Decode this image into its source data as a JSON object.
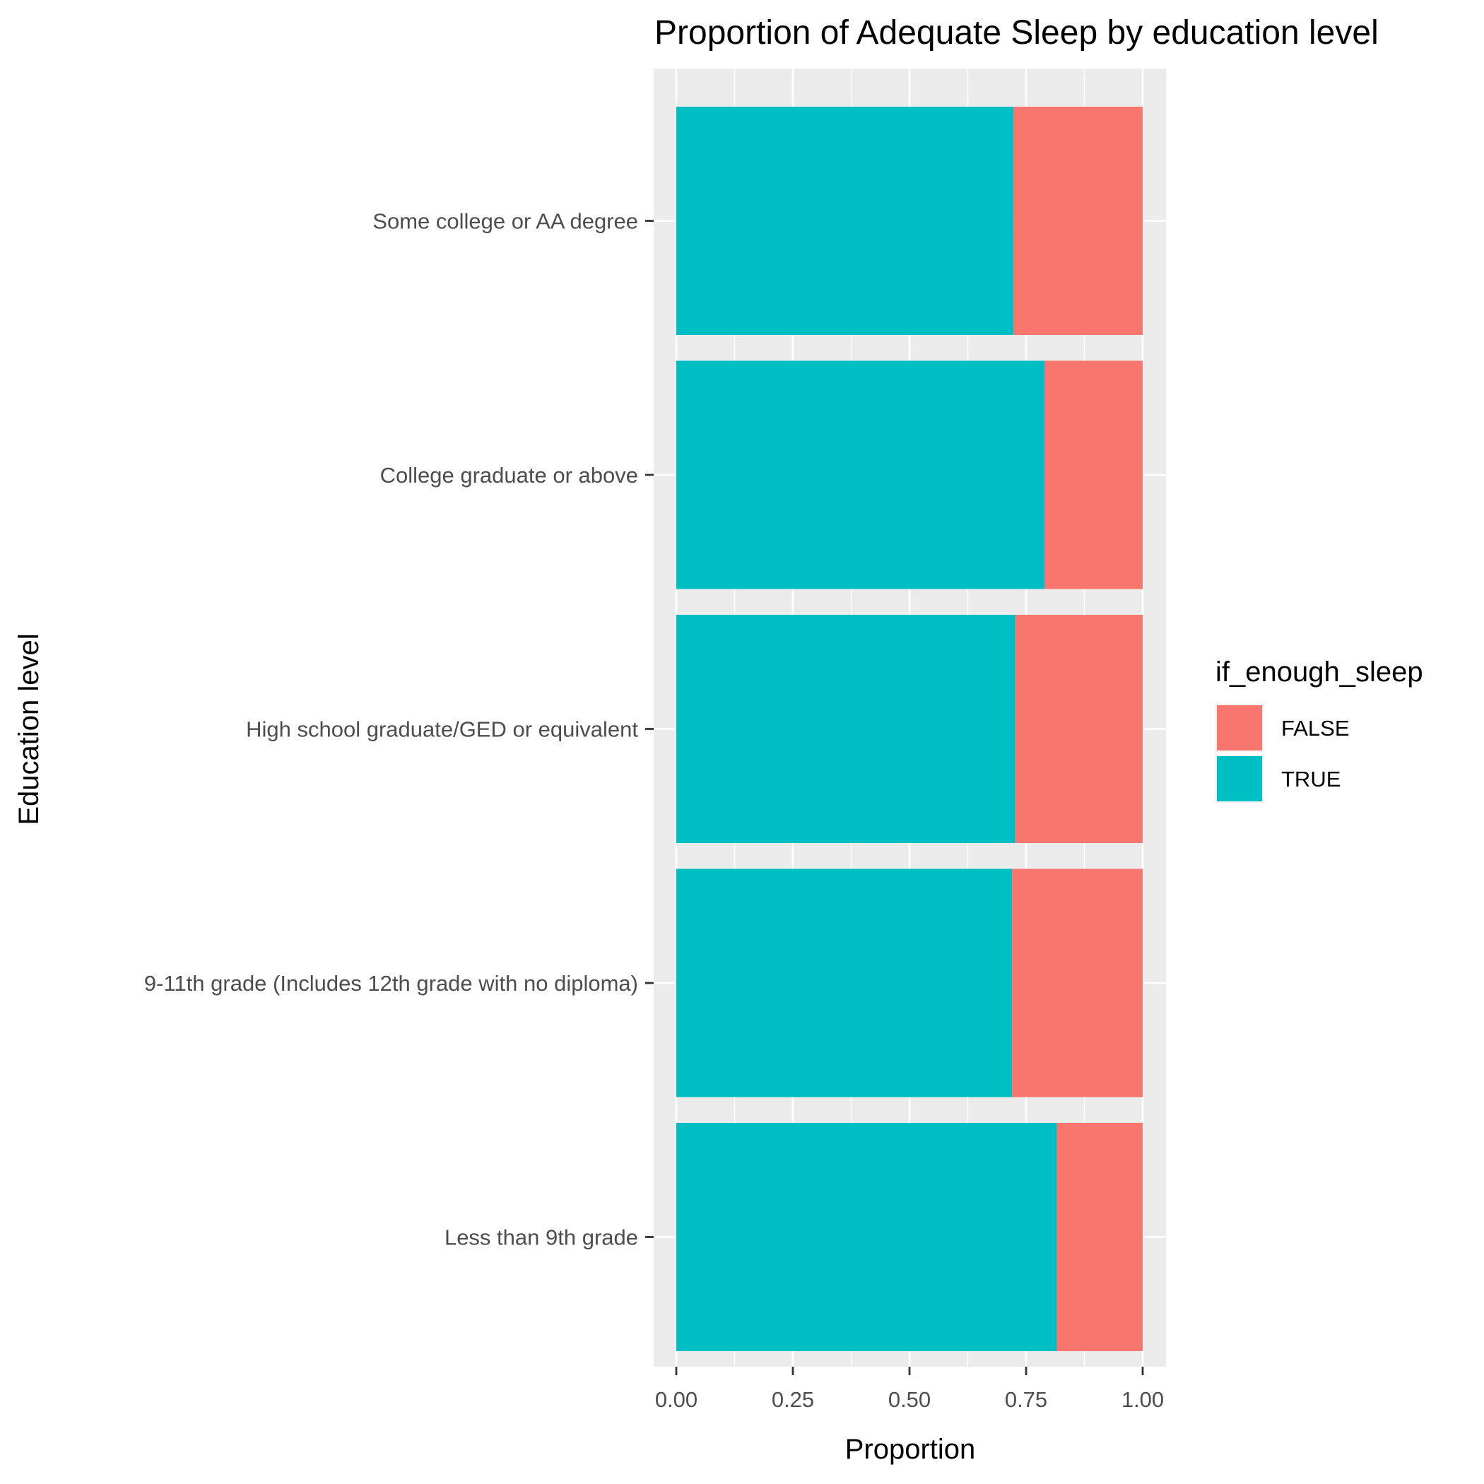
{
  "chart_data": {
    "type": "bar",
    "orientation": "horizontal",
    "stacked": true,
    "title": "Proportion of Adequate Sleep by education level",
    "xlabel": "Proportion",
    "ylabel": "Education level",
    "xlim": [
      0,
      1
    ],
    "x_ticks": [
      "0.00",
      "0.25",
      "0.50",
      "0.75",
      "1.00"
    ],
    "grid": true,
    "categories": [
      "Some college or AA degree",
      "College graduate or above",
      "High school graduate/GED or equivalent",
      "9-11th grade (Includes 12th grade with no diploma)",
      "Less than 9th grade"
    ],
    "series": [
      {
        "name": "TRUE",
        "color": "#00BFC4",
        "values": [
          0.723,
          0.79,
          0.727,
          0.72,
          0.816
        ]
      },
      {
        "name": "FALSE",
        "color": "#F8766D",
        "values": [
          0.277,
          0.21,
          0.273,
          0.28,
          0.184
        ]
      }
    ],
    "legend": {
      "title": "if_enough_sleep",
      "position": "right",
      "items": [
        {
          "label": "FALSE",
          "color": "#F8766D"
        },
        {
          "label": "TRUE",
          "color": "#00BFC4"
        }
      ]
    }
  }
}
